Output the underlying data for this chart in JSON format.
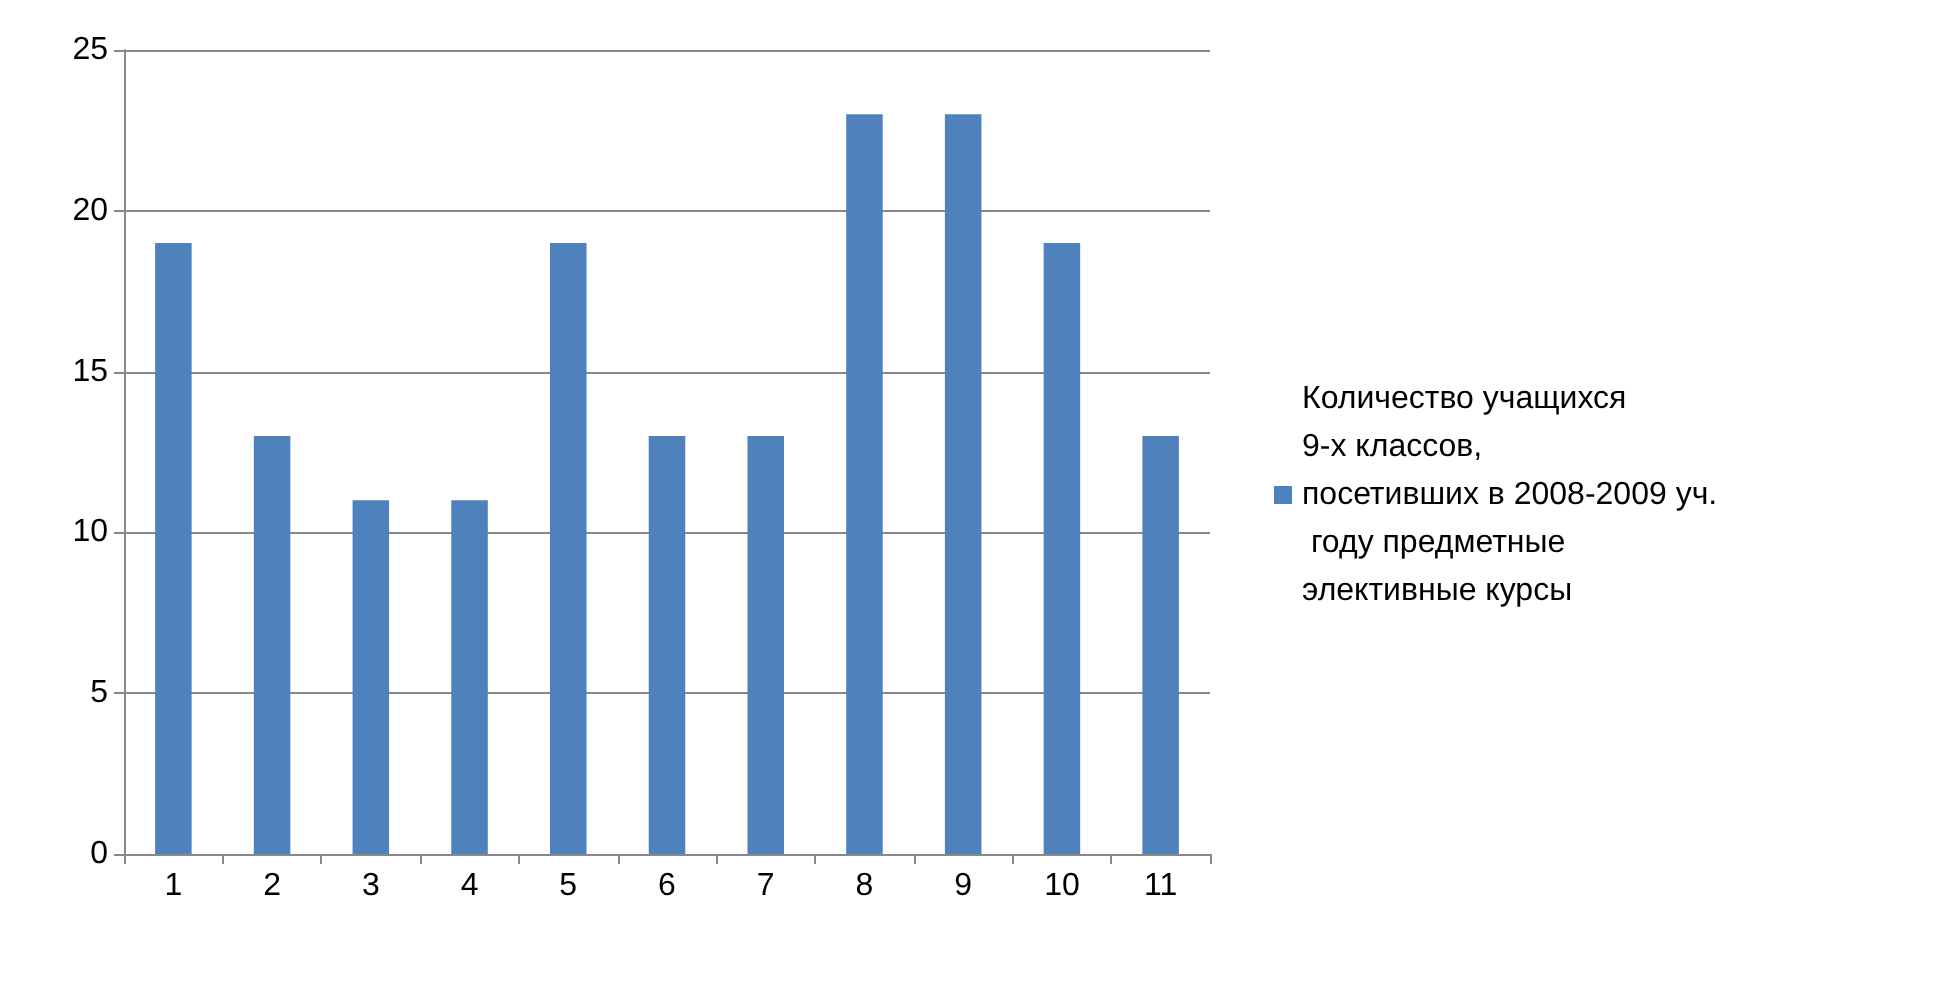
{
  "chart_data": {
    "type": "bar",
    "categories": [
      "1",
      "2",
      "3",
      "4",
      "5",
      "6",
      "7",
      "8",
      "9",
      "10",
      "11"
    ],
    "series": [
      {
        "name": "Количество учащихся 9-х классов, посетивших в 2008-2009 уч. году предметные элективные курсы",
        "color": "#4f81bd",
        "values": [
          19,
          13,
          11,
          11,
          19,
          13,
          13,
          23,
          23,
          19,
          13
        ]
      }
    ],
    "ylim": [
      0,
      25
    ],
    "yticks": [
      0,
      5,
      10,
      15,
      20,
      25
    ],
    "grid": "y",
    "legend": "right"
  }
}
